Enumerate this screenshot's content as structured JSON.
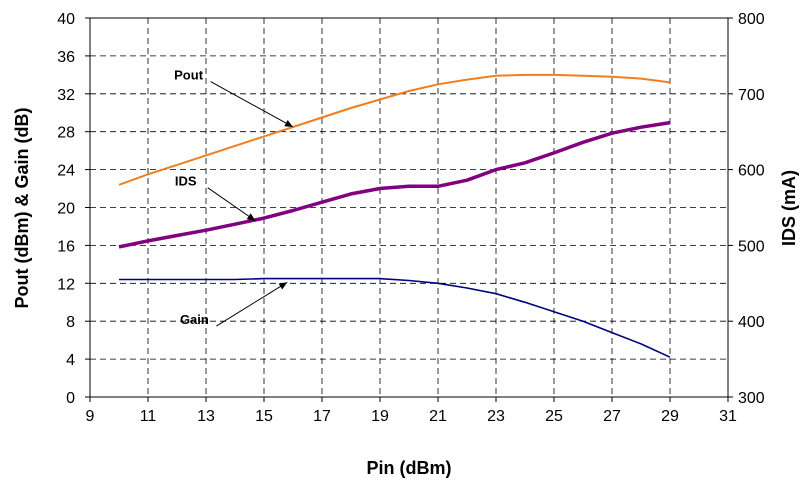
{
  "chart_data": {
    "type": "line",
    "xlabel": "Pin (dBm)",
    "ylabel": "Pout (dBm) & Gain (dB)",
    "y2label": "IDS (mA)",
    "xlim": [
      9,
      31
    ],
    "ylim": [
      0,
      40
    ],
    "y2lim": [
      300,
      800
    ],
    "x_ticks": [
      9,
      11,
      13,
      15,
      17,
      19,
      21,
      23,
      25,
      27,
      29,
      31
    ],
    "y_ticks": [
      0,
      4,
      8,
      12,
      16,
      20,
      24,
      28,
      32,
      36,
      40
    ],
    "y2_ticks": [
      300,
      400,
      500,
      600,
      700,
      800
    ],
    "grid": true,
    "series": [
      {
        "name": "Pout",
        "axis": "left",
        "color": "#f07f1e",
        "x": [
          10,
          11,
          12,
          13,
          14,
          15,
          16,
          17,
          18,
          19,
          20,
          21,
          22,
          23,
          24,
          25,
          26,
          27,
          28,
          29
        ],
        "values": [
          22.4,
          23.5,
          24.5,
          25.5,
          26.5,
          27.5,
          28.5,
          29.5,
          30.5,
          31.4,
          32.3,
          33.0,
          33.5,
          33.9,
          34.0,
          34.0,
          33.9,
          33.8,
          33.6,
          33.2
        ]
      },
      {
        "name": "IDS",
        "axis": "right",
        "color": "#800080",
        "x": [
          10,
          11,
          12,
          13,
          14,
          15,
          16,
          17,
          18,
          19,
          20,
          21,
          22,
          23,
          24,
          25,
          26,
          27,
          28,
          29
        ],
        "values": [
          498,
          506,
          513,
          520,
          528,
          536,
          546,
          557,
          568,
          575,
          578,
          578,
          586,
          600,
          609,
          622,
          636,
          648,
          656,
          662
        ]
      },
      {
        "name": "Gain",
        "axis": "left",
        "color": "#000080",
        "x": [
          10,
          11,
          12,
          13,
          14,
          15,
          16,
          17,
          18,
          19,
          20,
          21,
          22,
          23,
          24,
          25,
          26,
          27,
          28,
          29
        ],
        "values": [
          12.4,
          12.4,
          12.4,
          12.4,
          12.4,
          12.5,
          12.5,
          12.5,
          12.5,
          12.5,
          12.3,
          12.0,
          11.5,
          10.9,
          10.0,
          9.0,
          8.0,
          6.8,
          5.6,
          4.2
        ]
      }
    ],
    "annotations": [
      {
        "text": "Pout",
        "series": "Pout",
        "x": 16.0,
        "y": 28.5,
        "label_x": 12.4,
        "label_y": 33.5
      },
      {
        "text": "IDS",
        "series": "IDS",
        "x": 14.7,
        "y": 18.6,
        "label_x": 12.3,
        "label_y": 22.3
      },
      {
        "text": "Gain",
        "series": "Gain",
        "x": 15.8,
        "y": 12.1,
        "label_x": 12.6,
        "label_y": 7.7
      }
    ]
  }
}
